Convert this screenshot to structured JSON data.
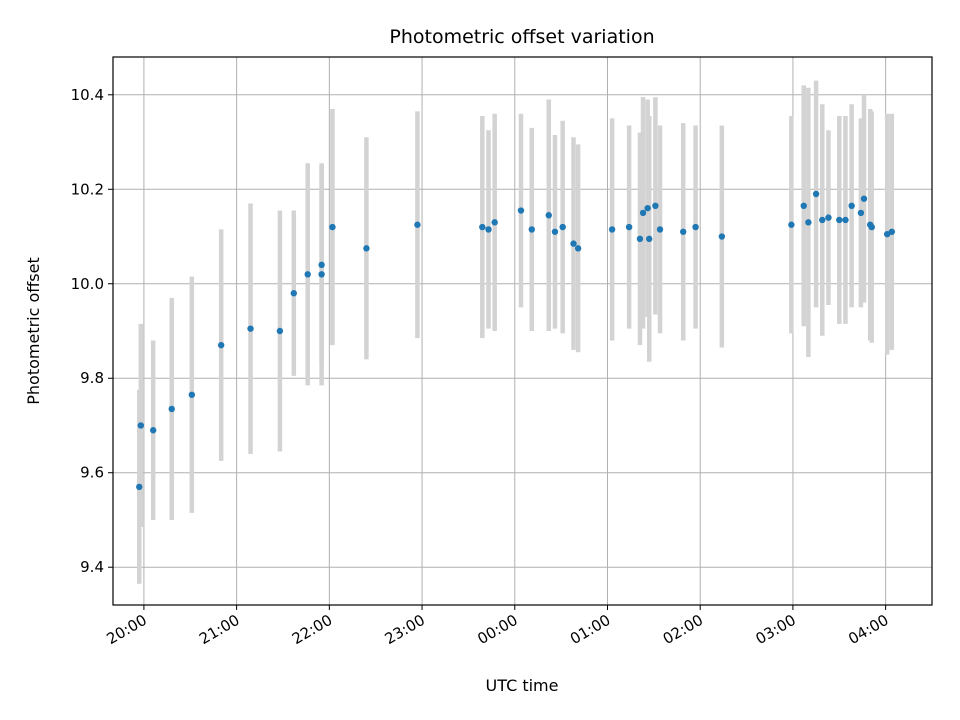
{
  "chart_data": {
    "type": "scatter",
    "title": "Photometric offset variation",
    "xlabel": "UTC time",
    "ylabel": "Photometric offset",
    "ylim": [
      9.32,
      10.48
    ],
    "xlim": [
      "19:40",
      "04:30"
    ],
    "grid": true,
    "x_ticks": [
      "20:00",
      "21:00",
      "22:00",
      "23:00",
      "00:00",
      "01:00",
      "02:00",
      "03:00",
      "04:00"
    ],
    "y_ticks": [
      "9.4",
      "9.6",
      "9.8",
      "10.0",
      "10.2",
      "10.4"
    ],
    "marker_color": "#1f77b4",
    "errorbar_color": "#d3d3d3",
    "series": [
      {
        "x": [
          "19:57",
          "19:58",
          "20:06",
          "20:18",
          "20:31",
          "20:50",
          "21:09",
          "21:28",
          "21:37",
          "21:46",
          "21:55",
          "21:55",
          "22:02",
          "22:24",
          "22:57",
          "23:39",
          "23:43",
          "23:47",
          "00:04",
          "00:11",
          "00:22",
          "00:26",
          "00:31",
          "00:38",
          "00:41",
          "01:03",
          "01:14",
          "01:21",
          "01:23",
          "01:26",
          "01:27",
          "01:31",
          "01:34",
          "01:49",
          "01:57",
          "02:14",
          "02:59",
          "03:07",
          "03:10",
          "03:15",
          "03:19",
          "03:23",
          "03:30",
          "03:34",
          "03:38",
          "03:44",
          "03:46",
          "03:50",
          "03:51",
          "04:01",
          "04:04"
        ],
        "y": [
          9.57,
          9.7,
          9.69,
          9.735,
          9.765,
          9.87,
          9.905,
          9.9,
          9.98,
          10.02,
          10.02,
          10.04,
          10.12,
          10.075,
          10.125,
          10.12,
          10.115,
          10.13,
          10.155,
          10.115,
          10.145,
          10.11,
          10.12,
          10.085,
          10.075,
          10.115,
          10.12,
          10.095,
          10.15,
          10.16,
          10.095,
          10.165,
          10.115,
          10.11,
          10.12,
          10.1,
          10.125,
          10.165,
          10.13,
          10.19,
          10.135,
          10.14,
          10.135,
          10.135,
          10.165,
          10.15,
          10.18,
          10.125,
          10.12,
          10.105,
          10.11
        ],
        "yerr": [
          0.205,
          0.215,
          0.19,
          0.235,
          0.25,
          0.245,
          0.265,
          0.255,
          0.175,
          0.235,
          0.235,
          0.21,
          0.25,
          0.235,
          0.24,
          0.235,
          0.21,
          0.23,
          0.205,
          0.215,
          0.245,
          0.205,
          0.225,
          0.225,
          0.22,
          0.235,
          0.215,
          0.225,
          0.245,
          0.23,
          0.26,
          0.23,
          0.22,
          0.23,
          0.215,
          0.235,
          0.23,
          0.255,
          0.285,
          0.24,
          0.245,
          0.185,
          0.22,
          0.22,
          0.215,
          0.2,
          0.22,
          0.245,
          0.245,
          0.255,
          0.25
        ]
      }
    ]
  }
}
